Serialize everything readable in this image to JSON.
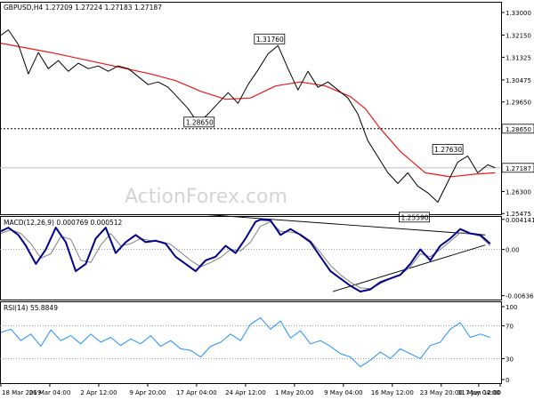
{
  "chart_data": [
    {
      "type": "line",
      "panel": "price",
      "header": "GBPUSD,H4  1.27209 1.27224 1.27183 1.27187",
      "ylim": [
        1.2545,
        1.334
      ],
      "y_ticks": [
        "1.33000",
        "1.32150",
        "1.31325",
        "1.30475",
        "1.29650",
        "1.28650",
        "1.27187",
        "1.26300",
        "1.25475"
      ],
      "y_tick_values": [
        1.33,
        1.3215,
        1.31325,
        1.30475,
        1.2965,
        1.2865,
        1.27187,
        1.263,
        1.25475
      ],
      "horizontal_line": {
        "value": 1.2865,
        "label": "1.28650"
      },
      "current_price": {
        "value": 1.27187,
        "label": "1.27187"
      },
      "watermark": "ActionForex.com",
      "annotations": [
        {
          "label": "1.31760",
          "x": 0.538,
          "y": 1.3176
        },
        {
          "label": "1.28650",
          "x": 0.397,
          "y": 1.2865
        },
        {
          "label": "1.27630",
          "x": 0.895,
          "y": 1.2763
        },
        {
          "label": "1.25590",
          "x": 0.828,
          "y": 1.2559
        }
      ],
      "series": [
        {
          "role": "price",
          "color": "#000000",
          "x": [
            0,
            0.015,
            0.035,
            0.055,
            0.075,
            0.095,
            0.115,
            0.135,
            0.155,
            0.175,
            0.195,
            0.215,
            0.235,
            0.255,
            0.275,
            0.295,
            0.315,
            0.335,
            0.355,
            0.375,
            0.395,
            0.415,
            0.435,
            0.455,
            0.475,
            0.495,
            0.515,
            0.535,
            0.555,
            0.575,
            0.595,
            0.615,
            0.635,
            0.655,
            0.675,
            0.695,
            0.715,
            0.735,
            0.755,
            0.775,
            0.795,
            0.815,
            0.835,
            0.855,
            0.875,
            0.895,
            0.915,
            0.935,
            0.955,
            0.975,
            0.99
          ],
          "y": [
            1.3215,
            1.3235,
            1.318,
            1.307,
            1.315,
            1.309,
            1.312,
            1.308,
            1.311,
            1.309,
            1.31,
            1.308,
            1.31,
            1.309,
            1.306,
            1.303,
            1.304,
            1.302,
            1.298,
            1.294,
            1.2885,
            1.292,
            1.296,
            1.3,
            1.296,
            1.303,
            1.3085,
            1.3145,
            1.3176,
            1.309,
            1.301,
            1.308,
            1.302,
            1.304,
            1.301,
            1.298,
            1.292,
            1.282,
            1.276,
            1.27,
            1.266,
            1.27,
            1.265,
            1.2625,
            1.259,
            1.2665,
            1.274,
            1.2763,
            1.27,
            1.273,
            1.27187
          ]
        },
        {
          "role": "moving-average",
          "color": "#e81818",
          "x": [
            0,
            0.1,
            0.2,
            0.3,
            0.35,
            0.4,
            0.45,
            0.5,
            0.55,
            0.6,
            0.65,
            0.7,
            0.73,
            0.76,
            0.8,
            0.85,
            0.9,
            0.95,
            0.99
          ],
          "y": [
            1.3185,
            1.315,
            1.311,
            1.307,
            1.3045,
            1.3005,
            1.2975,
            1.298,
            1.3025,
            1.304,
            1.3025,
            1.2985,
            1.294,
            1.2865,
            1.278,
            1.27,
            1.2685,
            1.2695,
            1.27
          ]
        }
      ]
    },
    {
      "type": "line",
      "panel": "macd",
      "header": "MACD(12,26,9) 0.000769 0.000512",
      "ylim": [
        -0.0069,
        0.0046
      ],
      "y_ticks": [
        "0.004141",
        "0.00",
        "-0.006365"
      ],
      "y_tick_values": [
        0.004141,
        0.0,
        -0.006365
      ],
      "dotted_levels": [
        0.0
      ],
      "trendlines": [
        {
          "x": [
            0.41,
            0.97
          ],
          "y": [
            0.0048,
            0.002
          ]
        },
        {
          "x": [
            0.665,
            0.97
          ],
          "y": [
            -0.0058,
            0.0006
          ]
        }
      ],
      "series": [
        {
          "role": "macd",
          "color": "#00008b",
          "x": [
            0,
            0.015,
            0.035,
            0.05,
            0.07,
            0.09,
            0.11,
            0.13,
            0.15,
            0.17,
            0.19,
            0.21,
            0.23,
            0.25,
            0.27,
            0.29,
            0.31,
            0.33,
            0.35,
            0.37,
            0.39,
            0.41,
            0.43,
            0.45,
            0.47,
            0.49,
            0.51,
            0.52,
            0.54,
            0.56,
            0.58,
            0.6,
            0.62,
            0.64,
            0.66,
            0.68,
            0.7,
            0.72,
            0.74,
            0.76,
            0.78,
            0.8,
            0.82,
            0.84,
            0.86,
            0.88,
            0.9,
            0.92,
            0.94,
            0.96,
            0.98
          ],
          "y": [
            0.0025,
            0.003,
            0.002,
            0.0005,
            -0.002,
            0.0,
            0.003,
            0.001,
            -0.003,
            -0.002,
            0.0015,
            0.003,
            -0.0005,
            0.001,
            0.002,
            0.001,
            0.0012,
            0.0008,
            -0.001,
            -0.002,
            -0.003,
            -0.0015,
            -0.001,
            0.0005,
            -0.0005,
            0.0015,
            0.0038,
            0.0041,
            0.004,
            0.002,
            0.0028,
            0.002,
            0.001,
            -0.001,
            -0.003,
            -0.004,
            -0.005,
            -0.0058,
            -0.0055,
            -0.0045,
            -0.004,
            -0.0035,
            -0.002,
            0.0,
            -0.0015,
            0.0005,
            0.0015,
            0.0028,
            0.0022,
            0.002,
            0.0008
          ]
        },
        {
          "role": "signal",
          "color": "#808080",
          "x": [
            0,
            0.02,
            0.04,
            0.06,
            0.08,
            0.1,
            0.12,
            0.14,
            0.16,
            0.18,
            0.2,
            0.22,
            0.24,
            0.26,
            0.28,
            0.3,
            0.32,
            0.34,
            0.36,
            0.38,
            0.4,
            0.42,
            0.44,
            0.46,
            0.48,
            0.5,
            0.52,
            0.54,
            0.56,
            0.58,
            0.6,
            0.62,
            0.64,
            0.66,
            0.68,
            0.7,
            0.72,
            0.74,
            0.76,
            0.78,
            0.8,
            0.82,
            0.84,
            0.86,
            0.88,
            0.9,
            0.92,
            0.94,
            0.96,
            0.98
          ],
          "y": [
            0.0022,
            0.0027,
            0.0022,
            0.0008,
            -0.0012,
            -0.0006,
            0.0018,
            0.0014,
            -0.0015,
            -0.0018,
            0.0006,
            0.0022,
            0.0005,
            0.0008,
            0.0015,
            0.0012,
            0.0011,
            0.0007,
            -0.0004,
            -0.0015,
            -0.0024,
            -0.0018,
            -0.0011,
            0.0,
            -0.0002,
            0.001,
            0.0032,
            0.0038,
            0.0025,
            0.0024,
            0.0021,
            0.0012,
            -0.0004,
            -0.0022,
            -0.0035,
            -0.0045,
            -0.0053,
            -0.0054,
            -0.0047,
            -0.004,
            -0.0035,
            -0.0024,
            -0.0006,
            -0.001,
            0.0,
            0.0011,
            0.0023,
            0.0022,
            0.0018,
            0.0005
          ]
        }
      ]
    },
    {
      "type": "line",
      "panel": "rsi",
      "header": "RSI(14) 55.8849",
      "ylim": [
        0,
        100
      ],
      "y_ticks": [
        "100",
        "70",
        "30",
        "0"
      ],
      "y_tick_values": [
        100,
        70,
        30,
        0
      ],
      "dotted_levels": [
        70,
        30
      ],
      "series": [
        {
          "role": "rsi",
          "color": "#1e90ff",
          "x": [
            0,
            0.02,
            0.04,
            0.06,
            0.08,
            0.1,
            0.12,
            0.14,
            0.16,
            0.18,
            0.2,
            0.22,
            0.24,
            0.26,
            0.28,
            0.3,
            0.32,
            0.34,
            0.36,
            0.38,
            0.4,
            0.42,
            0.44,
            0.46,
            0.48,
            0.5,
            0.52,
            0.54,
            0.56,
            0.58,
            0.6,
            0.62,
            0.64,
            0.66,
            0.68,
            0.7,
            0.72,
            0.74,
            0.76,
            0.78,
            0.8,
            0.82,
            0.84,
            0.86,
            0.88,
            0.9,
            0.92,
            0.94,
            0.96,
            0.98
          ],
          "y": [
            62,
            66,
            52,
            60,
            45,
            65,
            52,
            58,
            48,
            60,
            50,
            56,
            46,
            54,
            48,
            58,
            45,
            52,
            42,
            40,
            32,
            45,
            50,
            60,
            52,
            72,
            80,
            66,
            76,
            55,
            64,
            48,
            52,
            45,
            36,
            32,
            20,
            28,
            38,
            30,
            42,
            36,
            30,
            46,
            50,
            66,
            74,
            56,
            60,
            56
          ]
        }
      ]
    },
    {
      "type": "axis",
      "panel": "x-axis",
      "x_ticks": [
        "18 Mar 2019",
        "26 Mar 04:00",
        "2 Apr 12:00",
        "9 Apr 20:00",
        "17 Apr 04:00",
        "24 Apr 12:00",
        "1 May 20:00",
        "9 May 04:00",
        "16 May 12:00",
        "23 May 20:00",
        "31 May 04:00",
        "7 Jun 12:00"
      ],
      "x_tick_positions": [
        0,
        0.098,
        0.196,
        0.294,
        0.392,
        0.49,
        0.588,
        0.686,
        0.784,
        0.882,
        0.957,
        1.0
      ]
    }
  ]
}
